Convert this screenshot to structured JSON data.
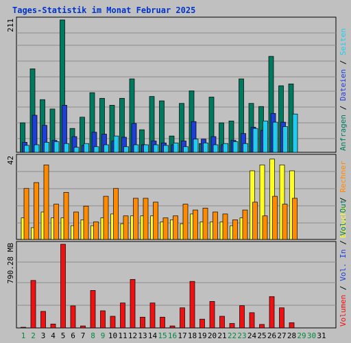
{
  "chart_data": {
    "type": "bar",
    "title": "Tages-Statistik im Monat Februar 2025",
    "days": [
      1,
      2,
      3,
      4,
      5,
      6,
      7,
      8,
      9,
      10,
      11,
      12,
      13,
      14,
      15,
      16,
      17,
      18,
      19,
      20,
      21,
      22,
      23,
      24,
      25,
      26,
      27,
      28,
      29,
      30,
      31
    ],
    "weekend_days": [
      1,
      2,
      8,
      9,
      15,
      16,
      22,
      23,
      29,
      30
    ],
    "colors": {
      "background": "#c0c0c0",
      "title": "#0033cc",
      "anfragen": "#007a5e",
      "dateien": "#1e3fd6",
      "seiten": "#22ccee",
      "besuche": "#ffff22",
      "rechner": "#ff8a00",
      "volumen": "#ee1111",
      "weekday_label": "#000000",
      "weekend_label": "#008a3a"
    },
    "panels": [
      {
        "id": "requests",
        "max_label": "211",
        "ylim": [
          0,
          211
        ],
        "axis_labels": [
          {
            "text": "Anfragen",
            "color_key": "anfragen"
          },
          {
            "text": " / ",
            "color_key": "weekday_label"
          },
          {
            "text": "Dateien",
            "color_key": "dateien"
          },
          {
            "text": " / ",
            "color_key": "weekday_label"
          },
          {
            "text": "Seiten",
            "color_key": "seiten"
          }
        ],
        "series": [
          {
            "name": "Anfragen",
            "color_key": "anfragen",
            "values": [
              47,
              133,
              84,
              69,
              211,
              38,
              56,
              95,
              86,
              75,
              86,
              117,
              36,
              89,
              82,
              26,
              78,
              98,
              14,
              88,
              47,
              50,
              117,
              78,
              73,
              153,
              106,
              109,
              0,
              0,
              0
            ]
          },
          {
            "name": "Dateien",
            "color_key": "dateien",
            "values": [
              16,
              59,
              43,
              19,
              75,
              25,
              11,
              32,
              29,
              18,
              24,
              46,
              12,
              18,
              15,
              12,
              18,
              49,
              21,
              25,
              12,
              19,
              30,
              40,
              35,
              62,
              48,
              0,
              0,
              0,
              0
            ]
          },
          {
            "name": "Seiten",
            "color_key": "seiten",
            "values": [
              11,
              12,
              16,
              17,
              14,
              8,
              14,
              9,
              12,
              26,
              9,
              12,
              12,
              12,
              11,
              15,
              9,
              21,
              15,
              12,
              14,
              17,
              14,
              38,
              50,
              48,
              41,
              61,
              0,
              0,
              0
            ]
          }
        ]
      },
      {
        "id": "visits",
        "max_label": "42",
        "ylim": [
          0,
          42
        ],
        "axis_labels": [
          {
            "text": "Besuche",
            "color_key": "besuche"
          },
          {
            "text": " / ",
            "color_key": "weekday_label"
          },
          {
            "text": "Rechner",
            "color_key": "rechner"
          }
        ],
        "series": [
          {
            "name": "Besuche",
            "color_key": "besuche",
            "values": [
              11,
              6,
              14,
              11,
              11,
              7,
              10,
              7,
              11,
              13,
              8,
              12,
              12,
              12,
              9,
              10,
              8,
              13,
              9,
              9,
              9,
              7,
              11,
              35,
              38,
              41,
              38,
              35,
              0,
              0,
              0
            ]
          },
          {
            "name": "Rechner",
            "color_key": "rechner",
            "values": [
              26,
              29,
              38,
              18,
              24,
              14,
              17,
              9,
              22,
              26,
              12,
              21,
              21,
              19,
              11,
              12,
              18,
              15,
              16,
              14,
              13,
              10,
              15,
              19,
              12,
              22,
              18,
              21,
              0,
              0,
              0
            ]
          }
        ]
      },
      {
        "id": "volume",
        "max_label": "790.28 MB",
        "ylim": [
          0,
          790.28
        ],
        "axis_labels": [
          {
            "text": "Volumen",
            "color_key": "volumen"
          },
          {
            "text": " / ",
            "color_key": "weekday_label"
          },
          {
            "text": "Vol. In",
            "color_key": "dateien"
          },
          {
            "text": " / ",
            "color_key": "weekday_label"
          },
          {
            "text": "Vol. Out",
            "color_key": "anfragen"
          }
        ],
        "series": [
          {
            "name": "Volumen",
            "color_key": "volumen",
            "values": [
              6,
              448,
              156,
              37,
              790,
              208,
              19,
              354,
              162,
              110,
              236,
              458,
              102,
              236,
              102,
              19,
              190,
              439,
              83,
              250,
              110,
              42,
              210,
              144,
              33,
              296,
              190,
              49,
              0,
              0,
              0
            ]
          }
        ]
      }
    ]
  }
}
